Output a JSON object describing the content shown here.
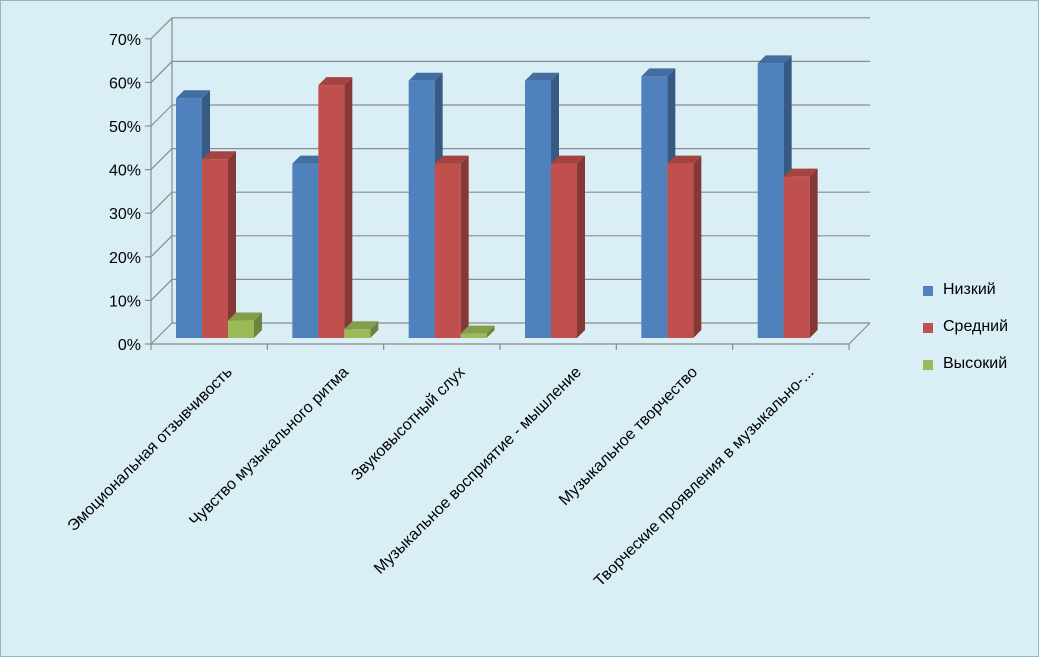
{
  "chart_data": {
    "type": "bar",
    "title": "",
    "xlabel": "",
    "ylabel": "",
    "ylim": [
      0,
      0.7
    ],
    "y_ticks": [
      "0%",
      "10%",
      "20%",
      "30%",
      "40%",
      "50%",
      "60%",
      "70%"
    ],
    "categories": [
      "Эмоциональная отзывчивость",
      "Чувство музыкального ритма",
      "Звуковысотный слух",
      "Музыкальное восприятие - мышление",
      "Музыкальное творчество",
      "Творческие проявления в музыкально-..."
    ],
    "series": [
      {
        "name": "Низкий",
        "color": "#4f81bd",
        "values": [
          0.55,
          0.4,
          0.59,
          0.59,
          0.6,
          0.63
        ]
      },
      {
        "name": "Средний",
        "color": "#c0504d",
        "values": [
          0.41,
          0.58,
          0.4,
          0.4,
          0.4,
          0.37
        ]
      },
      {
        "name": "Высокий",
        "color": "#9bbb59",
        "values": [
          0.04,
          0.02,
          0.01,
          0.0,
          0.0,
          0.0
        ]
      }
    ],
    "grid": true,
    "legend_position": "right",
    "style": "3d-clustered-column"
  }
}
